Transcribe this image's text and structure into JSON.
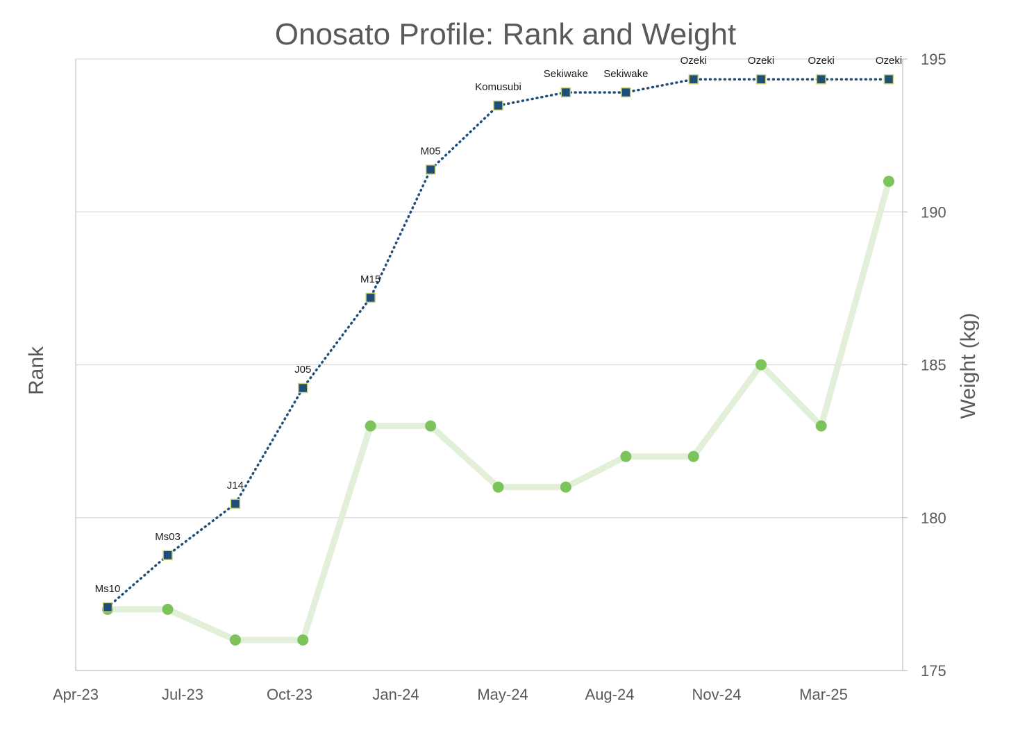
{
  "chart_data": {
    "type": "line",
    "title": "Onosato Profile: Rank and Weight",
    "y_left_label": "Rank",
    "y_right_label": "Weight (kg)",
    "x_axis": {
      "type": "date",
      "min": "2023-04-01",
      "max": "2025-05-31",
      "tick_labels": [
        "Apr-23",
        "Jul-23",
        "Oct-23",
        "Jan-24",
        "May-24",
        "Aug-24",
        "Nov-24",
        "Mar-25"
      ],
      "tick_dates": [
        "2023-04-01",
        "2023-07-01",
        "2023-10-01",
        "2024-01-01",
        "2024-05-01",
        "2024-08-01",
        "2024-11-01",
        "2025-03-01"
      ]
    },
    "y_right": {
      "min": 175,
      "max": 195,
      "ticks": [
        175,
        180,
        185,
        190,
        195
      ],
      "grid": true
    },
    "colors": {
      "rank_line": "#1f4e79",
      "rank_marker": "#1f4e79",
      "rank_marker_border": "#c9d47a",
      "weight_line": "#e2efd9",
      "weight_marker": "#7dc35b"
    },
    "series": [
      {
        "name": "Rank",
        "axis": "left",
        "style": "dotted-line-square-markers",
        "x": [
          "2023-05-14",
          "2023-07-09",
          "2023-09-10",
          "2023-11-12",
          "2024-01-14",
          "2024-03-10",
          "2024-05-12",
          "2024-07-14",
          "2024-09-08",
          "2024-11-10",
          "2025-01-12",
          "2025-03-09",
          "2025-05-11"
        ],
        "labels": [
          "Ms10",
          "Ms03",
          "J14",
          "J05",
          "M15",
          "M05",
          "Komusubi",
          "Sekiwake",
          "Sekiwake",
          "Ozeki",
          "Ozeki",
          "Ozeki",
          "Ozeki"
        ],
        "position": [
          0.164,
          0.299,
          0.432,
          0.732,
          0.966,
          1.298,
          1.464,
          1.498,
          1.498,
          1.532,
          1.532,
          1.532,
          1.532
        ]
      },
      {
        "name": "Weight (kg)",
        "axis": "right",
        "style": "thick-line-round-markers",
        "x": [
          "2023-05-14",
          "2023-07-09",
          "2023-09-10",
          "2023-11-12",
          "2024-01-14",
          "2024-03-10",
          "2024-05-12",
          "2024-07-14",
          "2024-09-08",
          "2024-11-10",
          "2025-01-12",
          "2025-03-09",
          "2025-05-11"
        ],
        "values": [
          177,
          177,
          176,
          176,
          183,
          183,
          181,
          181,
          182,
          182,
          185,
          183,
          191
        ]
      }
    ]
  }
}
